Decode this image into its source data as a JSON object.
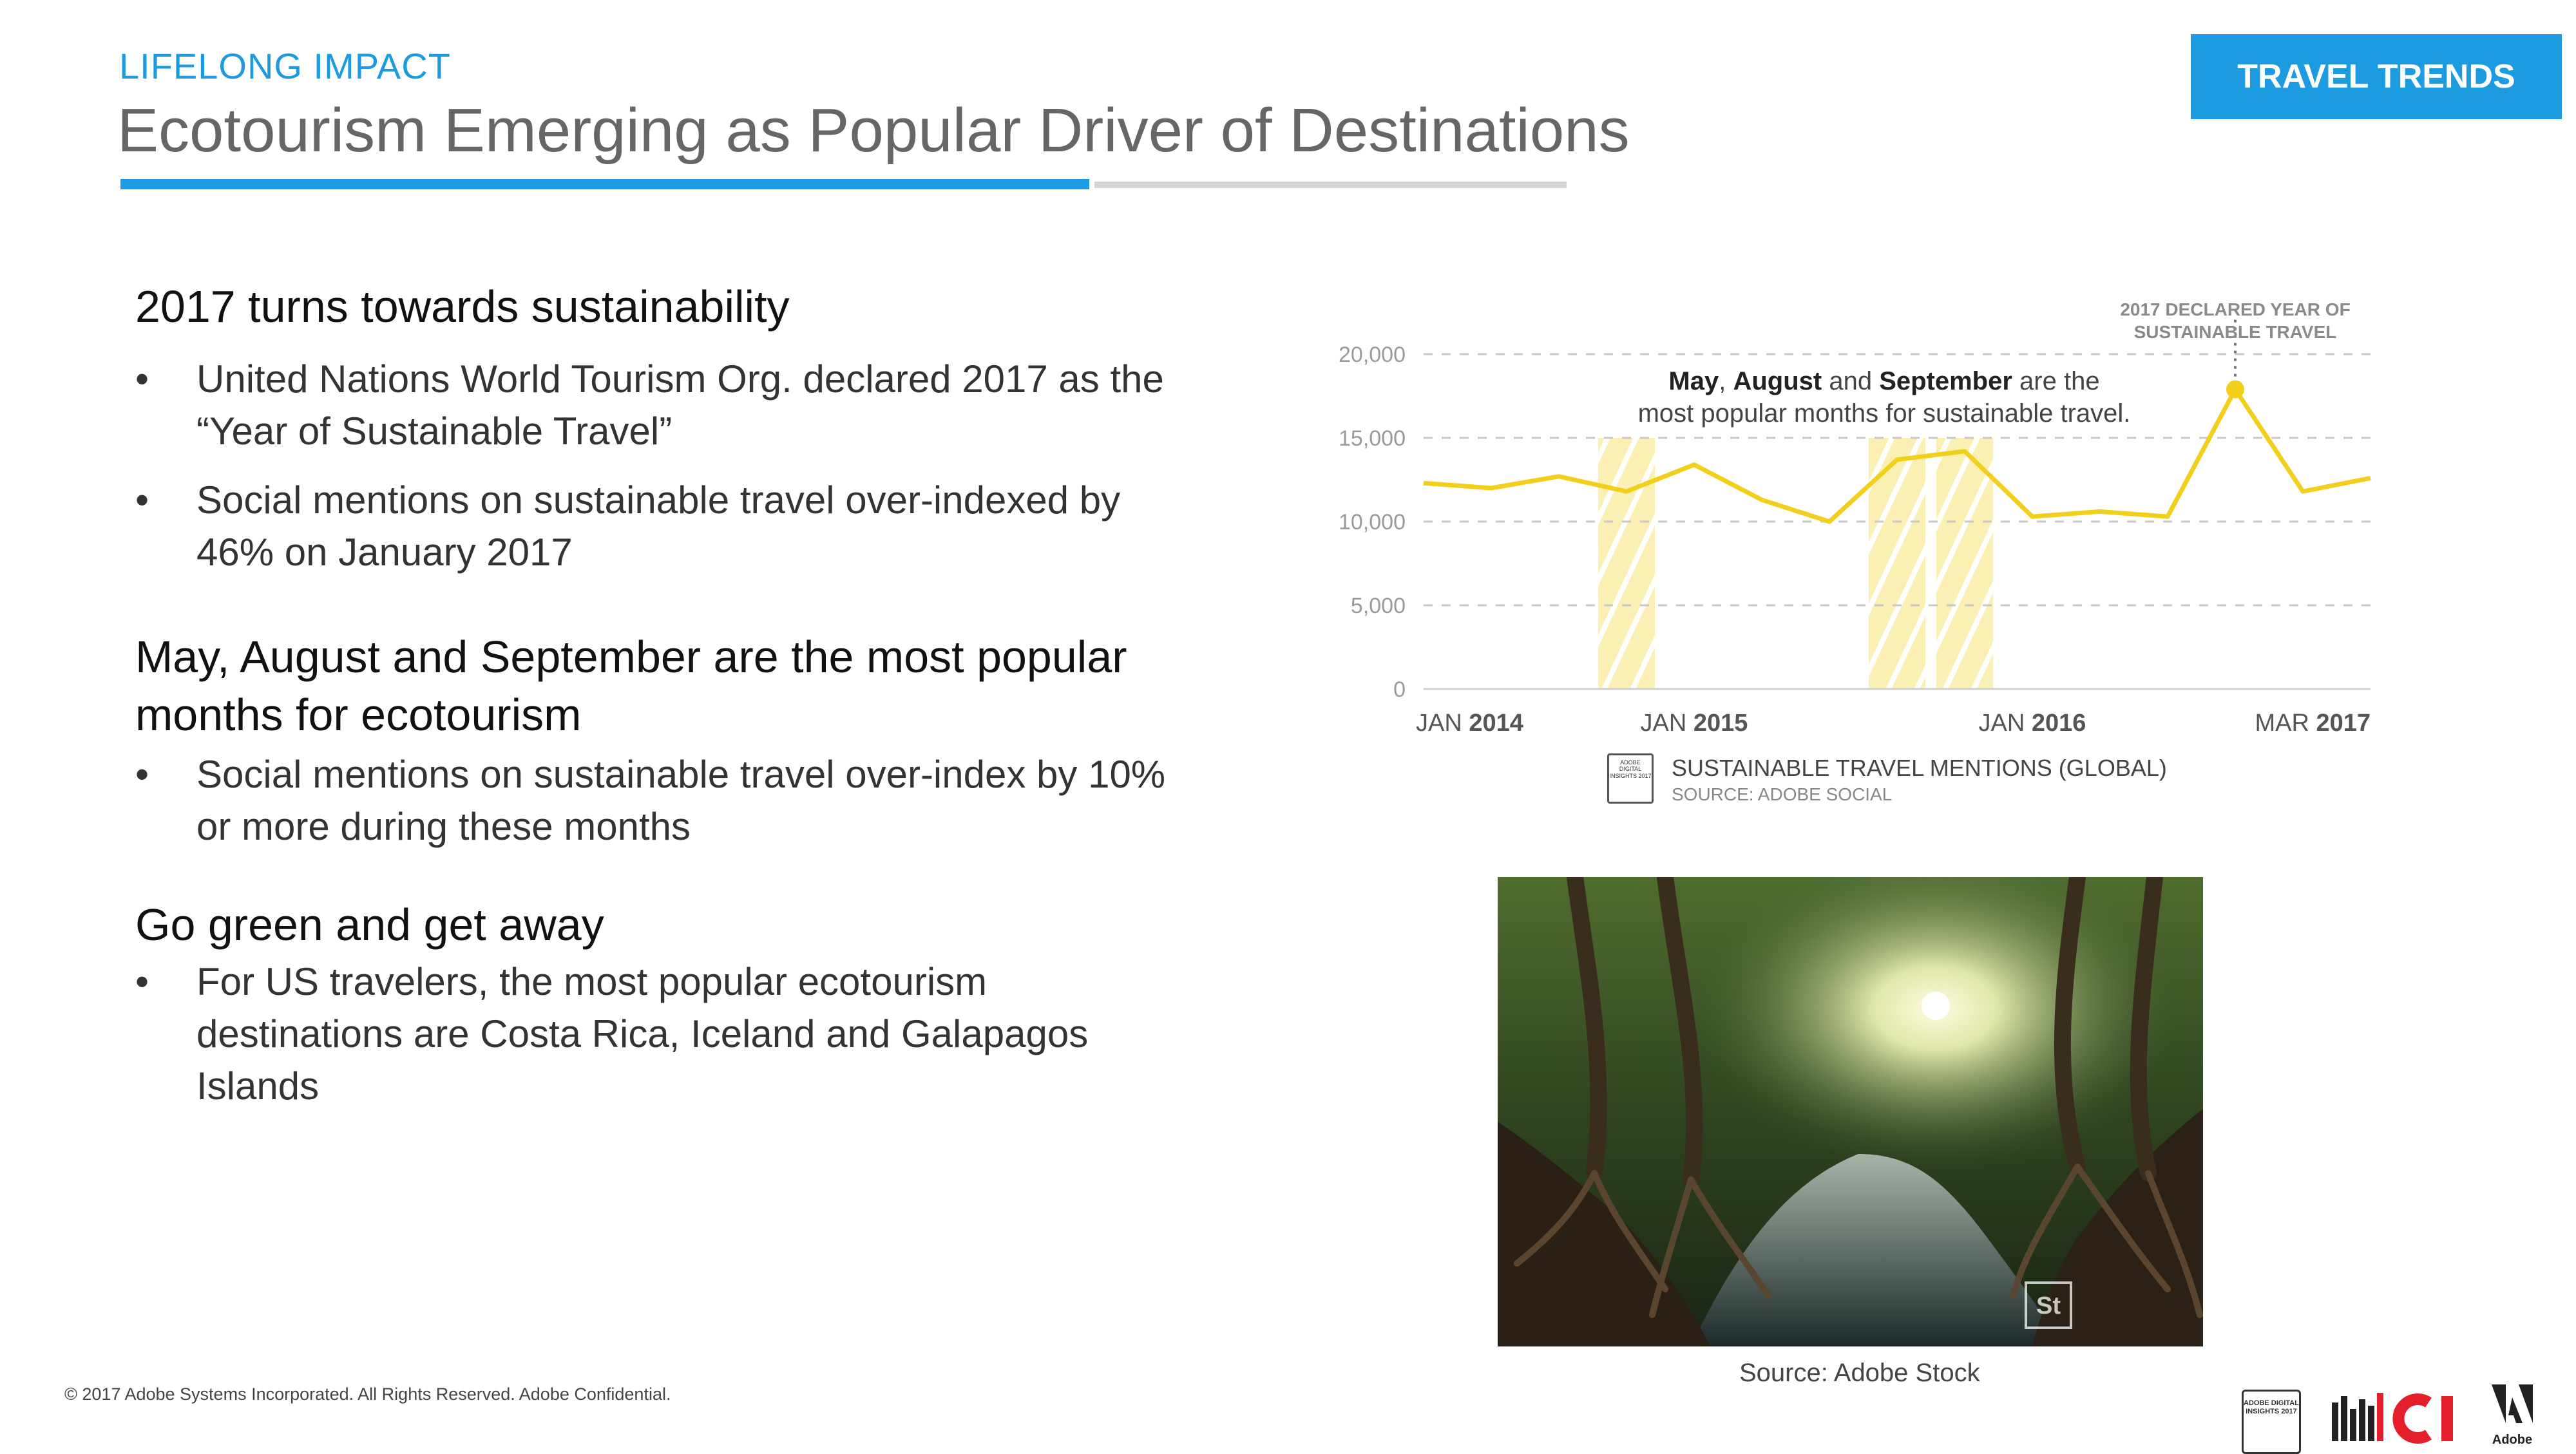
{
  "header": {
    "kicker": "LIFELONG IMPACT",
    "title": "Ecotourism Emerging as Popular Driver of Destinations",
    "badge": "TRAVEL TRENDS",
    "progress": 0.67
  },
  "content": {
    "sections": [
      {
        "heading": "2017 turns towards sustainability",
        "bullets": [
          "United Nations World Tourism Org. declared 2017 as the “Year of Sustainable Travel”",
          "Social mentions on sustainable travel over-indexed by 46% on January 2017"
        ]
      },
      {
        "heading": "May, August and September are the most popular months for ecotourism",
        "bullets": [
          "Social mentions on sustainable travel over-index by 10% or more during these months"
        ]
      },
      {
        "heading": "Go green and get away",
        "bullets": [
          "For US travelers, the most popular ecotourism destinations are Costa Rica, Iceland and Galapagos Islands"
        ]
      }
    ],
    "bullet_char": "•"
  },
  "chart_data": {
    "type": "line",
    "x_tick_labels": [
      {
        "prefix": "JAN",
        "year": "2014"
      },
      {
        "prefix": "JAN",
        "year": "2015"
      },
      {
        "prefix": "JAN",
        "year": "2016"
      },
      {
        "prefix": "MAR",
        "year": "2017"
      }
    ],
    "y_tick_labels": [
      "0",
      "5,000",
      "10,000",
      "15,000",
      "20,000"
    ],
    "ylim": [
      0,
      20000
    ],
    "series": [
      {
        "values": [
          12300,
          12000,
          12700,
          11800,
          13400,
          11300,
          10000,
          13700,
          14200,
          10300,
          10600,
          10300,
          17900,
          11800,
          12600
        ]
      }
    ],
    "highlighted_points": [
      3,
      7,
      8
    ],
    "highlight_color": "#f7e98d",
    "line_color": "#f2cf1b",
    "annotation_peak": "2017 DECLARED YEAR OF SUSTAINABLE TRAVEL",
    "annotation_main_parts": [
      {
        "text": "May",
        "bold": true
      },
      {
        "text": ", ",
        "bold": false
      },
      {
        "text": "August",
        "bold": true
      },
      {
        "text": " and ",
        "bold": false
      },
      {
        "text": "September",
        "bold": true
      },
      {
        "text": " are the",
        "bold": false
      }
    ],
    "annotation_main_line2": "most popular months for sustainable travel.",
    "legend_title": "SUSTAINABLE TRAVEL MENTIONS (GLOBAL)",
    "legend_source": "SOURCE: ADOBE SOCIAL",
    "legend_icon_text": "ADOBE DIGITAL INSIGHTS 2017",
    "grid": true
  },
  "photo": {
    "caption": "Source: Adobe Stock",
    "stamp": "St"
  },
  "footer": {
    "copyright": "© 2017 Adobe Systems Incorporated.  All Rights Reserved.  Adobe Confidential.",
    "adi_logo_text": "ADOBE DIGITAL INSIGHTS 2017",
    "adobe_logo_text": "Adobe"
  }
}
